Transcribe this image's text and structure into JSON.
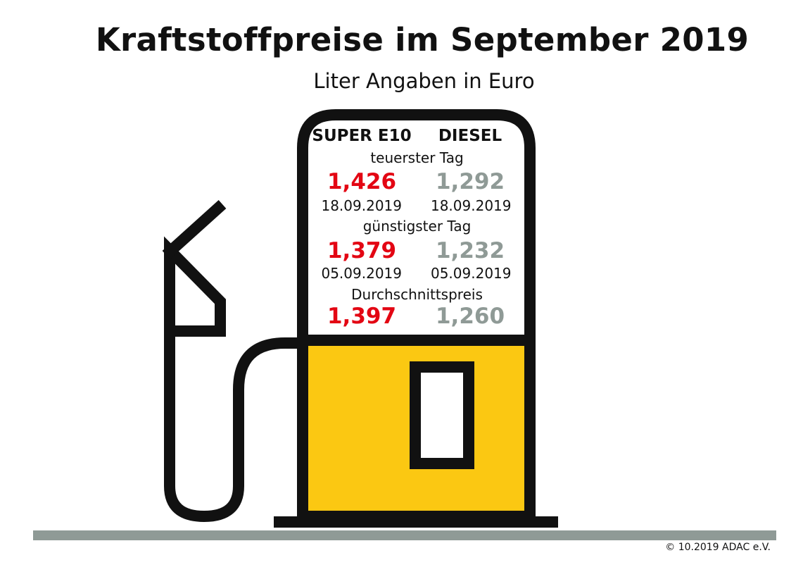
{
  "title": "Kraftstoffpreise im September 2019",
  "subtitle": "Liter Angaben in Euro",
  "colors": {
    "super": "#e30613",
    "diesel": "#8f9a96",
    "pump_body": "#fbc812",
    "ground": "#8f9a96"
  },
  "panel": {
    "columns": [
      "SUPER E10",
      "DIESEL"
    ],
    "sections": [
      {
        "label": "teuerster Tag",
        "super_price": "1,426",
        "super_date": "18.09.2019",
        "diesel_price": "1,292",
        "diesel_date": "18.09.2019"
      },
      {
        "label": "günstigster Tag",
        "super_price": "1,379",
        "super_date": "05.09.2019",
        "diesel_price": "1,232",
        "diesel_date": "05.09.2019"
      },
      {
        "label": "Durchschnittspreis",
        "super_price": "1,397",
        "diesel_price": "1,260"
      }
    ]
  },
  "footer": "© 10.2019  ADAC e.V."
}
